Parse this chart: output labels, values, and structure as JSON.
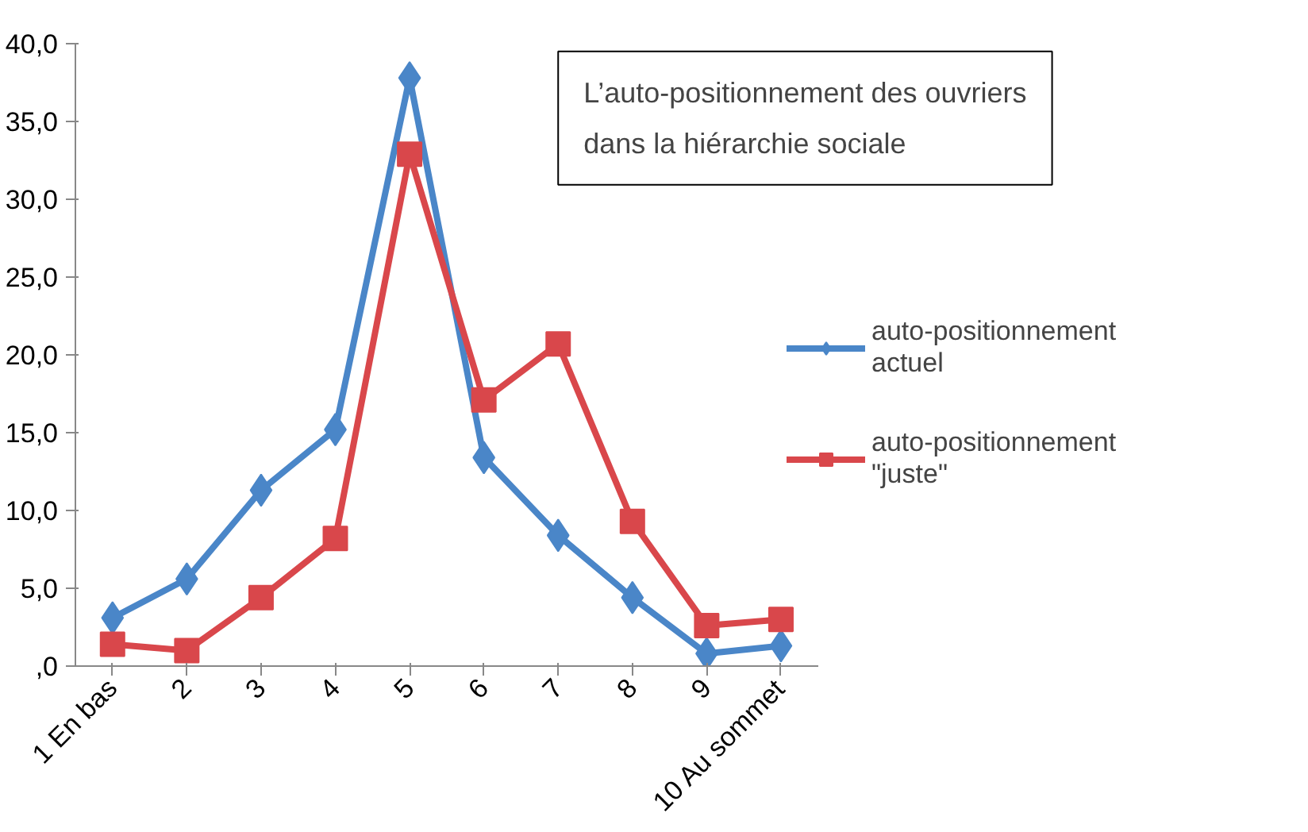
{
  "chart_data": {
    "type": "line",
    "title": "L’auto-positionnement des ouvriers\ndans la hiérarchie sociale",
    "categories": [
      "1 En bas",
      "2",
      "3",
      "4",
      "5",
      "6",
      "7",
      "8",
      "9",
      "10 Au sommet"
    ],
    "series": [
      {
        "name": "auto-positionnement actuel",
        "color": "#4a86c8",
        "marker": "diamond",
        "values": [
          3.1,
          5.6,
          11.3,
          15.2,
          37.8,
          13.4,
          8.4,
          4.4,
          0.8,
          1.3
        ]
      },
      {
        "name": "auto-positionnement \"juste\"",
        "color": "#d9474b",
        "marker": "square",
        "values": [
          1.4,
          1.0,
          4.4,
          8.2,
          32.9,
          17.1,
          20.7,
          9.3,
          2.6,
          3.0
        ]
      }
    ],
    "ylim": [
      0,
      40
    ],
    "yticks": [
      {
        "value": 0,
        "label": ",0"
      },
      {
        "value": 5,
        "label": "5,0"
      },
      {
        "value": 10,
        "label": "10,0"
      },
      {
        "value": 15,
        "label": "15,0"
      },
      {
        "value": 20,
        "label": "20,0"
      },
      {
        "value": 25,
        "label": "25,0"
      },
      {
        "value": 30,
        "label": "30,0"
      },
      {
        "value": 35,
        "label": "35,0"
      },
      {
        "value": 40,
        "label": "40,0"
      }
    ],
    "grid": false,
    "legend": "right",
    "line_style": "solid"
  }
}
